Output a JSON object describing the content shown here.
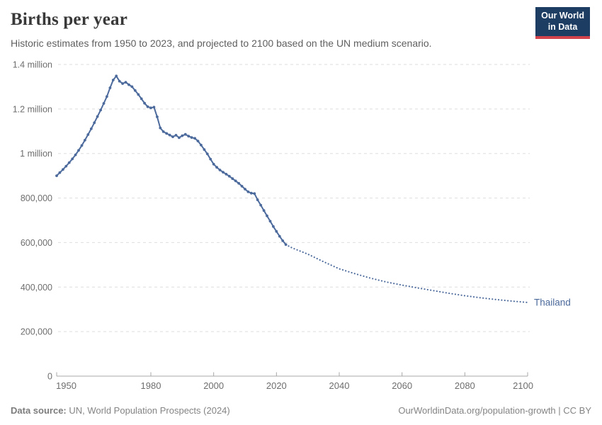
{
  "header": {
    "title": "Births per year",
    "subtitle": "Historic estimates from 1950 to 2023, and projected to 2100 based on the UN medium scenario.",
    "logo": {
      "line1": "Our World",
      "line2": "in Data",
      "bg_color": "#1d3d63",
      "bar_color": "#d2434b"
    }
  },
  "footer": {
    "source_label": "Data source:",
    "source_value": " UN, World Population Prospects (2024)",
    "credit": "OurWorldinData.org/population-growth | CC BY"
  },
  "chart_data": {
    "type": "line",
    "title": "Births per year",
    "entity_label": "Thailand",
    "line_color": "#4c6a9c",
    "grid_color": "#dedede",
    "axis_color": "#a8a8a8",
    "tick_label_color": "#6e6e6e",
    "grid": true,
    "legend_position": "line-end-label",
    "xlim": [
      1950,
      2100
    ],
    "ylim": [
      0,
      1400000
    ],
    "x_ticks": [
      1950,
      1980,
      2000,
      2020,
      2040,
      2060,
      2080,
      2100
    ],
    "y_ticks": [
      {
        "value": 0,
        "label": "0"
      },
      {
        "value": 200000,
        "label": "200,000"
      },
      {
        "value": 400000,
        "label": "400,000"
      },
      {
        "value": 600000,
        "label": "600,000"
      },
      {
        "value": 800000,
        "label": "800,000"
      },
      {
        "value": 1000000,
        "label": "1 million"
      },
      {
        "value": 1200000,
        "label": "1.2 million"
      },
      {
        "value": 1400000,
        "label": "1.4 million"
      }
    ],
    "series": [
      {
        "name": "historic",
        "style": "solid",
        "markers": true,
        "points": [
          [
            1950,
            900000
          ],
          [
            1951,
            914000
          ],
          [
            1952,
            928000
          ],
          [
            1953,
            943000
          ],
          [
            1954,
            959000
          ],
          [
            1955,
            976000
          ],
          [
            1956,
            994000
          ],
          [
            1957,
            1014000
          ],
          [
            1958,
            1036000
          ],
          [
            1959,
            1060000
          ],
          [
            1960,
            1085000
          ],
          [
            1961,
            1111000
          ],
          [
            1962,
            1138000
          ],
          [
            1963,
            1166000
          ],
          [
            1964,
            1195000
          ],
          [
            1965,
            1225000
          ],
          [
            1966,
            1256000
          ],
          [
            1967,
            1295000
          ],
          [
            1968,
            1330000
          ],
          [
            1969,
            1348000
          ],
          [
            1970,
            1325000
          ],
          [
            1971,
            1314000
          ],
          [
            1972,
            1320000
          ],
          [
            1973,
            1309000
          ],
          [
            1974,
            1300000
          ],
          [
            1975,
            1283000
          ],
          [
            1976,
            1265000
          ],
          [
            1977,
            1246000
          ],
          [
            1978,
            1226000
          ],
          [
            1979,
            1210000
          ],
          [
            1980,
            1205000
          ],
          [
            1981,
            1208000
          ],
          [
            1982,
            1165000
          ],
          [
            1983,
            1115000
          ],
          [
            1984,
            1098000
          ],
          [
            1985,
            1090000
          ],
          [
            1986,
            1083000
          ],
          [
            1987,
            1075000
          ],
          [
            1988,
            1082000
          ],
          [
            1989,
            1071000
          ],
          [
            1990,
            1080000
          ],
          [
            1991,
            1086000
          ],
          [
            1992,
            1078000
          ],
          [
            1993,
            1072000
          ],
          [
            1994,
            1068000
          ],
          [
            1995,
            1056000
          ],
          [
            1996,
            1038000
          ],
          [
            1997,
            1018000
          ],
          [
            1998,
            998000
          ],
          [
            1999,
            975000
          ],
          [
            2000,
            952000
          ],
          [
            2001,
            938000
          ],
          [
            2002,
            926000
          ],
          [
            2003,
            916000
          ],
          [
            2004,
            907000
          ],
          [
            2005,
            898000
          ],
          [
            2006,
            887000
          ],
          [
            2007,
            877000
          ],
          [
            2008,
            866000
          ],
          [
            2009,
            853000
          ],
          [
            2010,
            840000
          ],
          [
            2011,
            828000
          ],
          [
            2012,
            822000
          ],
          [
            2013,
            820000
          ],
          [
            2014,
            792000
          ],
          [
            2015,
            768000
          ],
          [
            2016,
            744000
          ],
          [
            2017,
            720000
          ],
          [
            2018,
            696000
          ],
          [
            2019,
            672000
          ],
          [
            2020,
            650000
          ],
          [
            2021,
            628000
          ],
          [
            2022,
            608000
          ],
          [
            2023,
            591000
          ]
        ]
      },
      {
        "name": "projection",
        "style": "dotted",
        "markers": false,
        "points": [
          [
            2023,
            591000
          ],
          [
            2025,
            576000
          ],
          [
            2030,
            548000
          ],
          [
            2035,
            514000
          ],
          [
            2040,
            482000
          ],
          [
            2045,
            460000
          ],
          [
            2050,
            440000
          ],
          [
            2055,
            423000
          ],
          [
            2060,
            409000
          ],
          [
            2065,
            396000
          ],
          [
            2070,
            384000
          ],
          [
            2075,
            372000
          ],
          [
            2080,
            361000
          ],
          [
            2085,
            352000
          ],
          [
            2090,
            344000
          ],
          [
            2095,
            337000
          ],
          [
            2100,
            331000
          ]
        ]
      }
    ]
  }
}
